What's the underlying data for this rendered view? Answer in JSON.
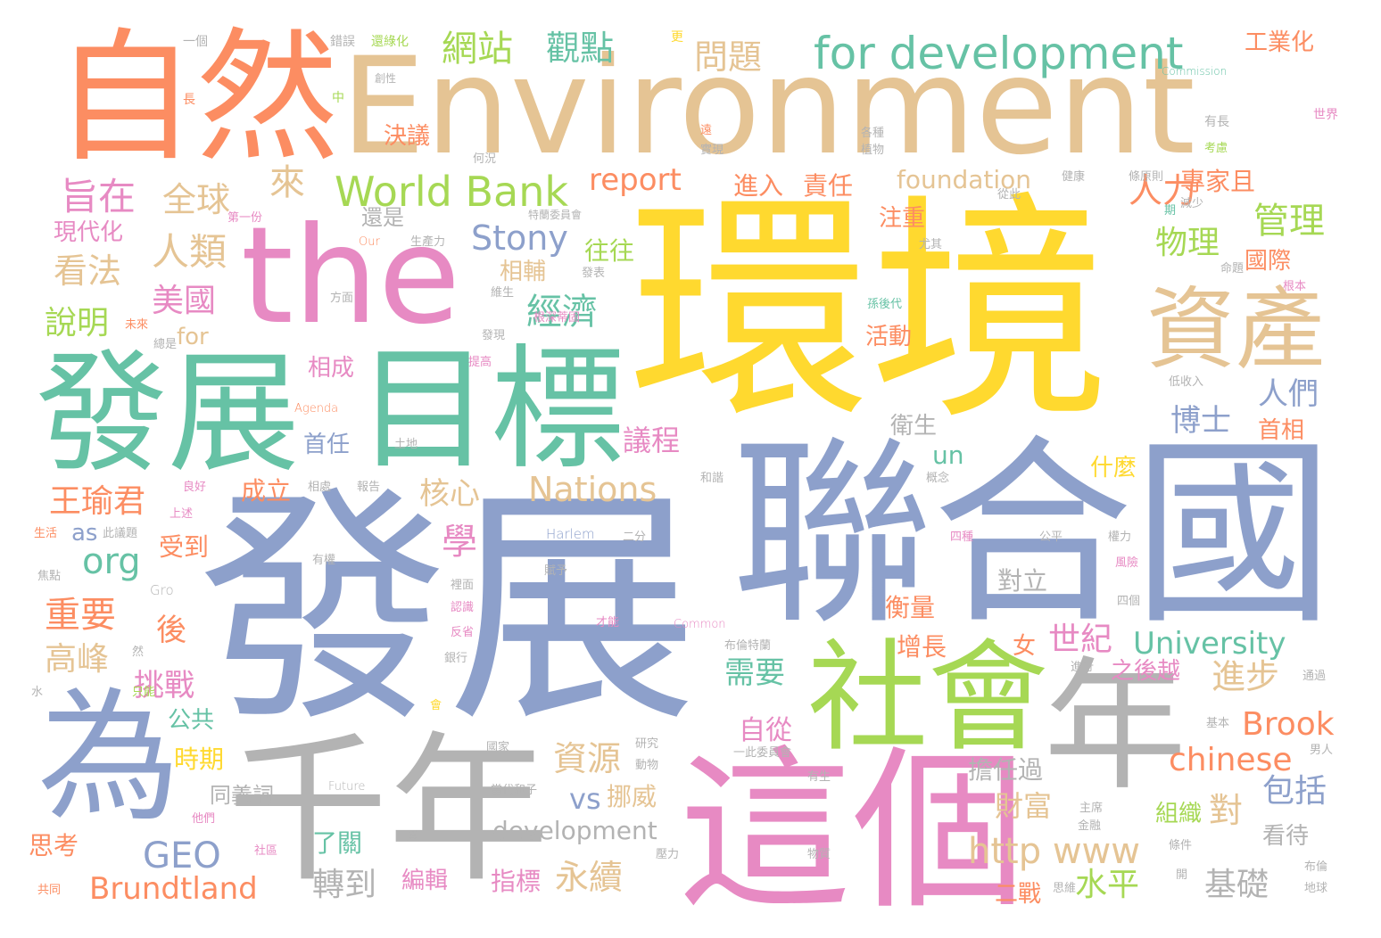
{
  "colors": {
    "orange": "#fc8d62",
    "tan": "#e5c494",
    "pink": "#e78ac3",
    "blue": "#8da0cb",
    "gold": "#ffd92f",
    "green": "#66c2a5",
    "lime": "#a6d854",
    "gray": "#b3b3b3"
  },
  "words": [
    {
      "text": "發展",
      "color": "blue",
      "w": 3
    },
    {
      "text": "環境",
      "color": "gold",
      "w": 3
    },
    {
      "text": "聯合國",
      "color": "blue",
      "w": 3
    },
    {
      "text": "Environment",
      "color": "tan",
      "w": 3
    },
    {
      "text": "自然",
      "color": "orange",
      "w": 3
    },
    {
      "text": "the",
      "color": "pink",
      "w": 3
    },
    {
      "text": "發展",
      "color": "green",
      "w": 3
    },
    {
      "text": "目標",
      "color": "green",
      "w": 3
    },
    {
      "text": "為",
      "color": "blue",
      "w": 3
    },
    {
      "text": "千年",
      "color": "gray",
      "w": 3
    },
    {
      "text": "這個",
      "color": "pink",
      "w": 3
    },
    {
      "text": "社會",
      "color": "lime",
      "w": 3
    },
    {
      "text": "年",
      "color": "gray",
      "w": 3
    },
    {
      "text": "資產",
      "color": "tan",
      "w": 3
    },
    {
      "text": "for development",
      "color": "green",
      "w": 2
    },
    {
      "text": "World Bank",
      "color": "lime",
      "w": 2
    },
    {
      "text": "網站",
      "color": "lime",
      "w": 2
    },
    {
      "text": "觀點",
      "color": "green",
      "w": 2
    },
    {
      "text": "問題",
      "color": "tan",
      "w": 2
    },
    {
      "text": "工業化",
      "color": "orange",
      "w": 2
    },
    {
      "text": "旨在",
      "color": "pink",
      "w": 2
    },
    {
      "text": "全球",
      "color": "tan",
      "w": 2
    },
    {
      "text": "來",
      "color": "tan",
      "w": 2
    },
    {
      "text": "人類",
      "color": "tan",
      "w": 2
    },
    {
      "text": "看法",
      "color": "tan",
      "w": 2
    },
    {
      "text": "現代化",
      "color": "pink",
      "w": 2
    },
    {
      "text": "美國",
      "color": "pink",
      "w": 2
    },
    {
      "text": "說明",
      "color": "lime",
      "w": 2
    },
    {
      "text": "for",
      "color": "tan",
      "w": 2
    },
    {
      "text": "決議",
      "color": "orange",
      "w": 2
    },
    {
      "text": "report",
      "color": "orange",
      "w": 2
    },
    {
      "text": "foundation",
      "color": "tan",
      "w": 2
    },
    {
      "text": "進入",
      "color": "orange",
      "w": 2
    },
    {
      "text": "責任",
      "color": "orange",
      "w": 2
    },
    {
      "text": "人力",
      "color": "orange",
      "w": 2
    },
    {
      "text": "專家且",
      "color": "orange",
      "w": 2
    },
    {
      "text": "管理",
      "color": "lime",
      "w": 2
    },
    {
      "text": "Stony",
      "color": "blue",
      "w": 2
    },
    {
      "text": "往往",
      "color": "lime",
      "w": 2
    },
    {
      "text": "物理",
      "color": "lime",
      "w": 2
    },
    {
      "text": "國際",
      "color": "orange",
      "w": 2
    },
    {
      "text": "經濟",
      "color": "green",
      "w": 2
    },
    {
      "text": "相輔",
      "color": "tan",
      "w": 2
    },
    {
      "text": "還是",
      "color": "gray",
      "w": 2
    },
    {
      "text": "注重",
      "color": "orange",
      "w": 2
    },
    {
      "text": "活動",
      "color": "orange",
      "w": 2
    },
    {
      "text": "人們",
      "color": "blue",
      "w": 2
    },
    {
      "text": "博士",
      "color": "blue",
      "w": 2
    },
    {
      "text": "首相",
      "color": "orange",
      "w": 2
    },
    {
      "text": "議程",
      "color": "pink",
      "w": 2
    },
    {
      "text": "衛生",
      "color": "gray",
      "w": 2
    },
    {
      "text": "相成",
      "color": "pink",
      "w": 2
    },
    {
      "text": "首任",
      "color": "blue",
      "w": 2
    },
    {
      "text": "un",
      "color": "green",
      "w": 2
    },
    {
      "text": "什麼",
      "color": "gold",
      "w": 2
    },
    {
      "text": "Nations",
      "color": "tan",
      "w": 2
    },
    {
      "text": "核心",
      "color": "tan",
      "w": 2
    },
    {
      "text": "王瑜君",
      "color": "orange",
      "w": 2
    },
    {
      "text": "成立",
      "color": "orange",
      "w": 2
    },
    {
      "text": "org",
      "color": "green",
      "w": 2
    },
    {
      "text": "學",
      "color": "pink",
      "w": 2
    },
    {
      "text": "受到",
      "color": "orange",
      "w": 2
    },
    {
      "text": "as",
      "color": "blue",
      "w": 2
    },
    {
      "text": "對立",
      "color": "gray",
      "w": 2
    },
    {
      "text": "重要",
      "color": "orange",
      "w": 2
    },
    {
      "text": "後",
      "color": "orange",
      "w": 2
    },
    {
      "text": "高峰",
      "color": "tan",
      "w": 2
    },
    {
      "text": "衡量",
      "color": "orange",
      "w": 2
    },
    {
      "text": "增長",
      "color": "orange",
      "w": 2
    },
    {
      "text": "女",
      "color": "orange",
      "w": 2
    },
    {
      "text": "世紀",
      "color": "pink",
      "w": 2
    },
    {
      "text": "University",
      "color": "green",
      "w": 2
    },
    {
      "text": "挑戰",
      "color": "pink",
      "w": 2
    },
    {
      "text": "需要",
      "color": "green",
      "w": 2
    },
    {
      "text": "進步",
      "color": "tan",
      "w": 2
    },
    {
      "text": "之後越",
      "color": "pink",
      "w": 2
    },
    {
      "text": "公共",
      "color": "green",
      "w": 2
    },
    {
      "text": "自從",
      "color": "pink",
      "w": 2
    },
    {
      "text": "Brook",
      "color": "orange",
      "w": 2
    },
    {
      "text": "時期",
      "color": "gold",
      "w": 2
    },
    {
      "text": "資源",
      "color": "tan",
      "w": 2
    },
    {
      "text": "chinese",
      "color": "orange",
      "w": 2
    },
    {
      "text": "同義詞",
      "color": "gray",
      "w": 2
    },
    {
      "text": "vs",
      "color": "blue",
      "w": 2
    },
    {
      "text": "挪威",
      "color": "tan",
      "w": 2
    },
    {
      "text": "擔任過",
      "color": "gray",
      "w": 2
    },
    {
      "text": "財富",
      "color": "tan",
      "w": 2
    },
    {
      "text": "對",
      "color": "tan",
      "w": 2
    },
    {
      "text": "包括",
      "color": "blue",
      "w": 2
    },
    {
      "text": "GEO",
      "color": "blue",
      "w": 2
    },
    {
      "text": "了關",
      "color": "green",
      "w": 2
    },
    {
      "text": "development",
      "color": "gray",
      "w": 2
    },
    {
      "text": "http www",
      "color": "tan",
      "w": 2
    },
    {
      "text": "組織",
      "color": "lime",
      "w": 2
    },
    {
      "text": "看待",
      "color": "gray",
      "w": 2
    },
    {
      "text": "思考",
      "color": "orange",
      "w": 2
    },
    {
      "text": "Brundtland",
      "color": "orange",
      "w": 2
    },
    {
      "text": "轉到",
      "color": "gray",
      "w": 2
    },
    {
      "text": "編輯",
      "color": "pink",
      "w": 2
    },
    {
      "text": "指標",
      "color": "pink",
      "w": 2
    },
    {
      "text": "永續",
      "color": "tan",
      "w": 2
    },
    {
      "text": "水平",
      "color": "lime",
      "w": 2
    },
    {
      "text": "基礎",
      "color": "gray",
      "w": 2
    },
    {
      "text": "二戰",
      "color": "orange",
      "w": 2
    },
    {
      "text": "一個",
      "color": "gray",
      "w": 1
    },
    {
      "text": "錯誤",
      "color": "gray",
      "w": 1
    },
    {
      "text": "還綠化",
      "color": "lime",
      "w": 1
    },
    {
      "text": "更",
      "color": "gold",
      "w": 1
    },
    {
      "text": "Commission",
      "color": "green",
      "w": 1
    },
    {
      "text": "創性",
      "color": "gray",
      "w": 1
    },
    {
      "text": "中",
      "color": "lime",
      "w": 1
    },
    {
      "text": "長",
      "color": "orange",
      "w": 1
    },
    {
      "text": "有長",
      "color": "gray",
      "w": 1
    },
    {
      "text": "世界",
      "color": "pink",
      "w": 1
    },
    {
      "text": "各種",
      "color": "gray",
      "w": 1
    },
    {
      "text": "植物",
      "color": "gray",
      "w": 1
    },
    {
      "text": "遠",
      "color": "orange",
      "w": 1
    },
    {
      "text": "實現",
      "color": "gray",
      "w": 1
    },
    {
      "text": "考慮",
      "color": "lime",
      "w": 1
    },
    {
      "text": "何況",
      "color": "gray",
      "w": 1
    },
    {
      "text": "健康",
      "color": "gray",
      "w": 1
    },
    {
      "text": "條原則",
      "color": "gray",
      "w": 1
    },
    {
      "text": "從此",
      "color": "gray",
      "w": 1
    },
    {
      "text": "第一份",
      "color": "pink",
      "w": 1
    },
    {
      "text": "特蘭委員會",
      "color": "gray",
      "w": 1
    },
    {
      "text": "期",
      "color": "green",
      "w": 1
    },
    {
      "text": "減少",
      "color": "gray",
      "w": 1
    },
    {
      "text": "Our",
      "color": "orange",
      "w": 1
    },
    {
      "text": "生產力",
      "color": "gray",
      "w": 1
    },
    {
      "text": "尤其",
      "color": "gray",
      "w": 1
    },
    {
      "text": "發表",
      "color": "gray",
      "w": 1
    },
    {
      "text": "命題",
      "color": "gray",
      "w": 1
    },
    {
      "text": "根本",
      "color": "pink",
      "w": 1
    },
    {
      "text": "方面",
      "color": "gray",
      "w": 1
    },
    {
      "text": "維生",
      "color": "gray",
      "w": 1
    },
    {
      "text": "孫後代",
      "color": "green",
      "w": 1
    },
    {
      "text": "未來",
      "color": "orange",
      "w": 1
    },
    {
      "text": "發現",
      "color": "gray",
      "w": 1
    },
    {
      "text": "根深蒂固",
      "color": "pink",
      "w": 1
    },
    {
      "text": "總是",
      "color": "gray",
      "w": 1
    },
    {
      "text": "提高",
      "color": "pink",
      "w": 1
    },
    {
      "text": "低收入",
      "color": "gray",
      "w": 1
    },
    {
      "text": "Agenda",
      "color": "orange",
      "w": 1
    },
    {
      "text": "土地",
      "color": "gray",
      "w": 1
    },
    {
      "text": "良好",
      "color": "pink",
      "w": 1
    },
    {
      "text": "相處",
      "color": "gray",
      "w": 1
    },
    {
      "text": "報告",
      "color": "gray",
      "w": 1
    },
    {
      "text": "和諧",
      "color": "gray",
      "w": 1
    },
    {
      "text": "概念",
      "color": "gray",
      "w": 1
    },
    {
      "text": "上述",
      "color": "pink",
      "w": 1
    },
    {
      "text": "生活",
      "color": "orange",
      "w": 1
    },
    {
      "text": "此議題",
      "color": "gray",
      "w": 1
    },
    {
      "text": "Harlem",
      "color": "blue",
      "w": 1
    },
    {
      "text": "二分",
      "color": "gray",
      "w": 1
    },
    {
      "text": "四種",
      "color": "pink",
      "w": 1
    },
    {
      "text": "公平",
      "color": "gray",
      "w": 1
    },
    {
      "text": "權力",
      "color": "gray",
      "w": 1
    },
    {
      "text": "焦點",
      "color": "gray",
      "w": 1
    },
    {
      "text": "有權",
      "color": "gray",
      "w": 1
    },
    {
      "text": "Gro",
      "color": "gray",
      "w": 1
    },
    {
      "text": "裡面",
      "color": "gray",
      "w": 1
    },
    {
      "text": "賦予",
      "color": "gray",
      "w": 1
    },
    {
      "text": "風險",
      "color": "pink",
      "w": 1
    },
    {
      "text": "認識",
      "color": "pink",
      "w": 1
    },
    {
      "text": "四個",
      "color": "gray",
      "w": 1
    },
    {
      "text": "反省",
      "color": "pink",
      "w": 1
    },
    {
      "text": "才能",
      "color": "pink",
      "w": 1
    },
    {
      "text": "Common",
      "color": "pink",
      "w": 1
    },
    {
      "text": "布倫特蘭",
      "color": "gray",
      "w": 1
    },
    {
      "text": "然",
      "color": "gray",
      "w": 1
    },
    {
      "text": "銀行",
      "color": "gray",
      "w": 1
    },
    {
      "text": "進行",
      "color": "gray",
      "w": 1
    },
    {
      "text": "水",
      "color": "gray",
      "w": 1
    },
    {
      "text": "只能",
      "color": "lime",
      "w": 1
    },
    {
      "text": "通過",
      "color": "gray",
      "w": 1
    },
    {
      "text": "會",
      "color": "gold",
      "w": 1
    },
    {
      "text": "基本",
      "color": "gray",
      "w": 1
    },
    {
      "text": "國家",
      "color": "gray",
      "w": 1
    },
    {
      "text": "研究",
      "color": "gray",
      "w": 1
    },
    {
      "text": "一此委員會",
      "color": "gray",
      "w": 1
    },
    {
      "text": "男人",
      "color": "gray",
      "w": 1
    },
    {
      "text": "動物",
      "color": "gray",
      "w": 1
    },
    {
      "text": "有生",
      "color": "gray",
      "w": 1
    },
    {
      "text": "Future",
      "color": "gray",
      "w": 1
    },
    {
      "text": "當代和子",
      "color": "gray",
      "w": 1
    },
    {
      "text": "他們",
      "color": "pink",
      "w": 1
    },
    {
      "text": "主席",
      "color": "gray",
      "w": 1
    },
    {
      "text": "選",
      "color": "gray",
      "w": 1
    },
    {
      "text": "金融",
      "color": "gray",
      "w": 1
    },
    {
      "text": "社區",
      "color": "pink",
      "w": 1
    },
    {
      "text": "條件",
      "color": "gray",
      "w": 1
    },
    {
      "text": "壓力",
      "color": "gray",
      "w": 1
    },
    {
      "text": "物質",
      "color": "gray",
      "w": 1
    },
    {
      "text": "布倫",
      "color": "gray",
      "w": 1
    },
    {
      "text": "共同",
      "color": "orange",
      "w": 1
    },
    {
      "text": "開",
      "color": "gray",
      "w": 1
    },
    {
      "text": "思維",
      "color": "gray",
      "w": 1
    },
    {
      "text": "地球",
      "color": "gray",
      "w": 1
    }
  ]
}
